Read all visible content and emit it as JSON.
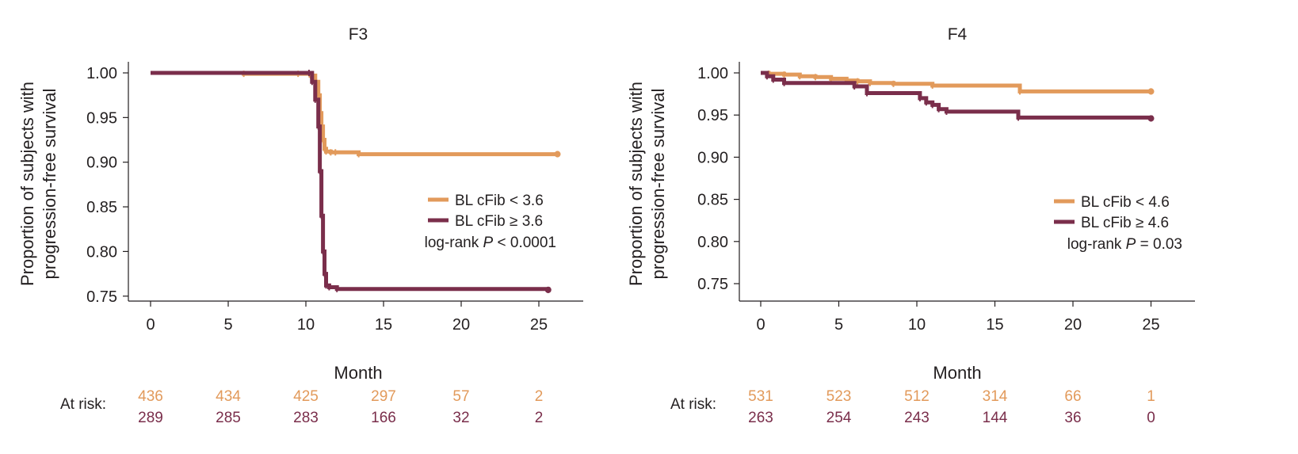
{
  "colors": {
    "low": "#e29a5b",
    "high": "#7a2e4b",
    "axis": "#231f20"
  },
  "panels": [
    {
      "title": "F3",
      "xlabel": "Month",
      "ylabel_line1": "Proportion of subjects with",
      "ylabel_line2": "progression-free survival",
      "xticks": [
        "0",
        "5",
        "10",
        "15",
        "20",
        "25"
      ],
      "yticks": [
        "0.75",
        "0.80",
        "0.85",
        "0.90",
        "0.95",
        "1.00"
      ],
      "legend": [
        {
          "label": "BL cFib < 3.6",
          "color": "#e29a5b"
        },
        {
          "label": "BL cFib ≥ 3.6",
          "color": "#7a2e4b"
        }
      ],
      "pvalue_prefix": "log-rank ",
      "pvalue_p": "P",
      "pvalue_suffix": " < 0.0001",
      "at_risk_label": "At risk:",
      "at_risk_low": [
        "436",
        "434",
        "425",
        "297",
        "57",
        "2"
      ],
      "at_risk_high": [
        "289",
        "285",
        "283",
        "166",
        "32",
        "2"
      ]
    },
    {
      "title": "F4",
      "xlabel": "Month",
      "ylabel_line1": "Proportion of subjects with",
      "ylabel_line2": "progression-free survival",
      "xticks": [
        "0",
        "5",
        "10",
        "15",
        "20",
        "25"
      ],
      "yticks": [
        "0.75",
        "0.80",
        "0.85",
        "0.90",
        "0.95",
        "1.00"
      ],
      "legend": [
        {
          "label": "BL cFib < 4.6",
          "color": "#e29a5b"
        },
        {
          "label": "BL cFib ≥ 4.6",
          "color": "#7a2e4b"
        }
      ],
      "pvalue_prefix": "log-rank ",
      "pvalue_p": "P",
      "pvalue_suffix": " = 0.03",
      "at_risk_label": "At risk:",
      "at_risk_low": [
        "531",
        "523",
        "512",
        "314",
        "66",
        "1"
      ],
      "at_risk_high": [
        "263",
        "254",
        "243",
        "144",
        "36",
        "0"
      ]
    }
  ],
  "chart_data": [
    {
      "type": "line",
      "title": "F3",
      "xlabel": "Month",
      "ylabel": "Proportion of subjects with progression-free survival",
      "xlim": [
        -1.5,
        27.5
      ],
      "ylim": [
        0.745,
        1.01
      ],
      "xticks": [
        0,
        5,
        10,
        15,
        20,
        25
      ],
      "yticks": [
        0.75,
        0.8,
        0.85,
        0.9,
        0.95,
        1.0
      ],
      "step": true,
      "legend_position": "right",
      "series": [
        {
          "name": "BL cFib < 3.6",
          "x": [
            0,
            6.0,
            9.5,
            10.3,
            10.6,
            10.8,
            10.9,
            11.0,
            11.1,
            11.2,
            11.3,
            11.6,
            11.9,
            13.4,
            26.2
          ],
          "y": [
            1.0,
            0.999,
            0.999,
            0.997,
            0.99,
            0.975,
            0.955,
            0.94,
            0.925,
            0.915,
            0.912,
            0.911,
            0.911,
            0.909,
            0.909
          ]
        },
        {
          "name": "BL cFib ≥ 3.6",
          "x": [
            0,
            10.2,
            10.4,
            10.6,
            10.8,
            10.9,
            11.0,
            11.1,
            11.2,
            11.3,
            11.5,
            12.0,
            25.6
          ],
          "y": [
            1.0,
            1.0,
            0.99,
            0.97,
            0.94,
            0.89,
            0.84,
            0.8,
            0.775,
            0.762,
            0.76,
            0.758,
            0.757
          ]
        }
      ],
      "at_risk": {
        "months": [
          0,
          5,
          10,
          15,
          20,
          25
        ],
        "BL cFib < 3.6": [
          436,
          434,
          425,
          297,
          57,
          2
        ],
        "BL cFib ≥ 3.6": [
          289,
          285,
          283,
          166,
          32,
          2
        ]
      }
    },
    {
      "type": "line",
      "title": "F4",
      "xlabel": "Month",
      "ylabel": "Proportion of subjects with progression-free survival",
      "xlim": [
        -1.5,
        27.5
      ],
      "ylim": [
        0.72,
        1.013
      ],
      "xticks": [
        0,
        5,
        10,
        15,
        20,
        25
      ],
      "yticks": [
        0.75,
        0.8,
        0.85,
        0.9,
        0.95,
        1.0
      ],
      "step": true,
      "legend_position": "right",
      "series": [
        {
          "name": "BL cFib < 4.6",
          "x": [
            0,
            0.5,
            1.5,
            2.5,
            3.5,
            4.5,
            5.5,
            6.2,
            7.0,
            8.5,
            11.0,
            16.6,
            25.0
          ],
          "y": [
            1.0,
            0.999,
            0.998,
            0.996,
            0.995,
            0.993,
            0.991,
            0.99,
            0.988,
            0.987,
            0.985,
            0.978,
            0.978
          ]
        },
        {
          "name": "BL cFib ≥ 4.6",
          "x": [
            0,
            0.4,
            0.8,
            1.5,
            6.0,
            6.8,
            10.2,
            10.6,
            11.0,
            11.4,
            11.9,
            16.5,
            25.0
          ],
          "y": [
            1.0,
            0.996,
            0.992,
            0.988,
            0.984,
            0.976,
            0.97,
            0.965,
            0.962,
            0.957,
            0.954,
            0.947,
            0.946
          ]
        }
      ],
      "at_risk": {
        "months": [
          0,
          5,
          10,
          15,
          20,
          25
        ],
        "BL cFib < 4.6": [
          531,
          523,
          512,
          314,
          66,
          1
        ],
        "BL cFib ≥ 4.6": [
          263,
          254,
          243,
          144,
          36,
          0
        ]
      }
    }
  ]
}
